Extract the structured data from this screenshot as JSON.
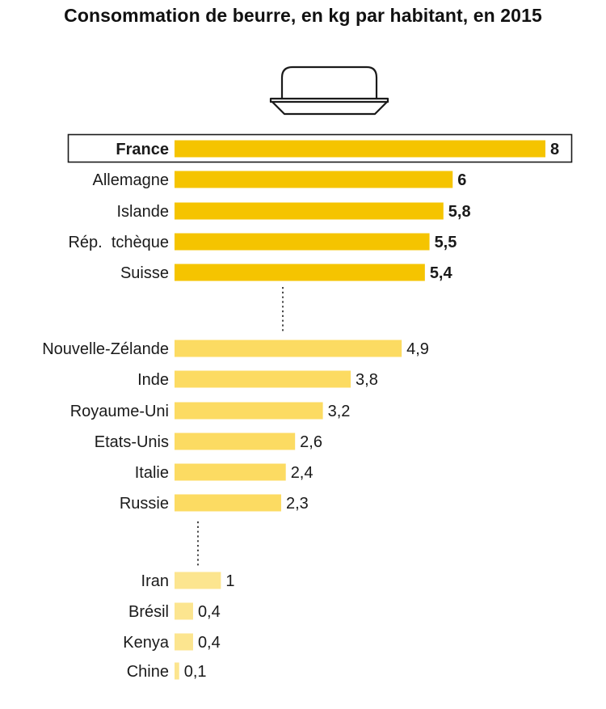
{
  "chart_data": {
    "type": "bar",
    "orientation": "horizontal",
    "title": "Consommation de beurre, en kg par habitant, en 2015",
    "xlabel": "",
    "ylabel": "",
    "xlim": [
      0,
      8
    ],
    "grid": false,
    "legend": "none",
    "highlighted_category": "France",
    "groups": [
      {
        "color": "#F5C400",
        "bold_labels": true,
        "items": [
          {
            "category": "France",
            "value": 8,
            "label": "8"
          },
          {
            "category": "Allemagne",
            "value": 6,
            "label": "6"
          },
          {
            "category": "Islande",
            "value": 5.8,
            "label": "5,8"
          },
          {
            "category": "Rép.  tchèque",
            "value": 5.5,
            "label": "5,5"
          },
          {
            "category": "Suisse",
            "value": 5.4,
            "label": "5,4"
          }
        ]
      },
      {
        "color": "#FCDB62",
        "bold_labels": false,
        "items": [
          {
            "category": "Nouvelle-Zélande",
            "value": 4.9,
            "label": "4,9"
          },
          {
            "category": "Inde",
            "value": 3.8,
            "label": "3,8"
          },
          {
            "category": "Royaume-Uni",
            "value": 3.2,
            "label": "3,2"
          },
          {
            "category": "Etats-Unis",
            "value": 2.6,
            "label": "2,6"
          },
          {
            "category": "Italie",
            "value": 2.4,
            "label": "2,4"
          },
          {
            "category": "Russie",
            "value": 2.3,
            "label": "2,3"
          }
        ]
      },
      {
        "color": "#FCE58F",
        "bold_labels": false,
        "items": [
          {
            "category": "Iran",
            "value": 1,
            "label": "1"
          },
          {
            "category": "Brésil",
            "value": 0.4,
            "label": "0,4"
          },
          {
            "category": "Kenya",
            "value": 0.4,
            "label": "0,4"
          },
          {
            "category": "Chine",
            "value": 0.1,
            "label": "0,1"
          }
        ]
      }
    ]
  },
  "colors": {
    "text": "#1a1a1a",
    "highlight_box": "#1a1a1a",
    "icon_stroke": "#1a1a1a"
  },
  "icons": [
    "butter-dish-icon"
  ]
}
